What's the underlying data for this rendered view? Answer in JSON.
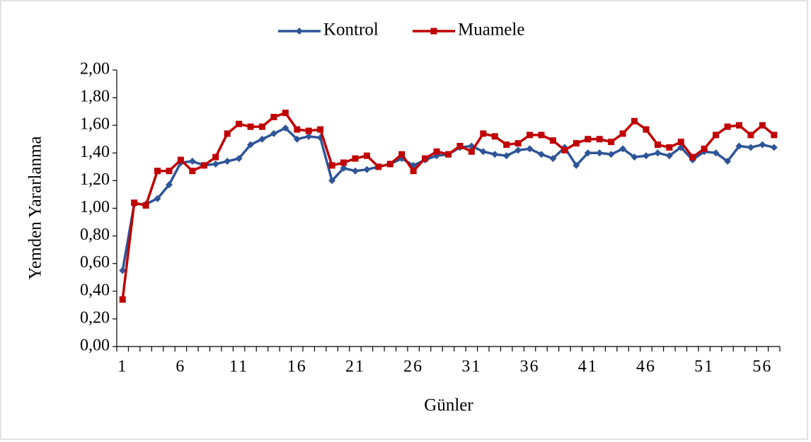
{
  "chart_data": {
    "type": "line",
    "xlabel": "Günler",
    "ylabel": "Yemden Yararlanma",
    "categories": [
      "1",
      null,
      null,
      null,
      null,
      "6",
      null,
      null,
      null,
      null,
      "11",
      null,
      null,
      null,
      null,
      "16",
      null,
      null,
      null,
      null,
      "21",
      null,
      null,
      null,
      null,
      "26",
      null,
      null,
      null,
      null,
      "31",
      null,
      null,
      null,
      null,
      "36",
      null,
      null,
      null,
      null,
      "41",
      null,
      null,
      null,
      null,
      "46",
      null,
      null,
      null,
      null,
      "51",
      null,
      null,
      null,
      null,
      "56",
      null
    ],
    "series": [
      {
        "name": "Kontrol",
        "color": "#2e5597",
        "marker": "diamond",
        "values": [
          0.55,
          1.03,
          1.03,
          1.07,
          1.17,
          1.33,
          1.34,
          1.31,
          1.32,
          1.34,
          1.36,
          1.46,
          1.5,
          1.54,
          1.58,
          1.5,
          1.52,
          1.51,
          1.2,
          1.29,
          1.27,
          1.28,
          1.3,
          1.32,
          1.36,
          1.31,
          1.35,
          1.38,
          1.39,
          1.44,
          1.45,
          1.41,
          1.39,
          1.38,
          1.42,
          1.43,
          1.39,
          1.36,
          1.44,
          1.31,
          1.4,
          1.4,
          1.39,
          1.43,
          1.37,
          1.38,
          1.4,
          1.38,
          1.44,
          1.35,
          1.41,
          1.4,
          1.34,
          1.45,
          1.44,
          1.46,
          1.44
        ]
      },
      {
        "name": "Muamele",
        "color": "#c00000",
        "marker": "square",
        "values": [
          0.34,
          1.04,
          1.02,
          1.27,
          1.27,
          1.35,
          1.27,
          1.31,
          1.37,
          1.54,
          1.61,
          1.59,
          1.59,
          1.66,
          1.69,
          1.57,
          1.56,
          1.57,
          1.31,
          1.33,
          1.36,
          1.38,
          1.3,
          1.32,
          1.39,
          1.27,
          1.36,
          1.41,
          1.39,
          1.45,
          1.41,
          1.54,
          1.52,
          1.46,
          1.47,
          1.53,
          1.53,
          1.49,
          1.42,
          1.47,
          1.5,
          1.5,
          1.48,
          1.54,
          1.63,
          1.57,
          1.46,
          1.44,
          1.48,
          1.37,
          1.43,
          1.53,
          1.59,
          1.6,
          1.53,
          1.6,
          1.53
        ]
      }
    ],
    "ylim": [
      0,
      2
    ],
    "yticks": [
      {
        "value": 0,
        "label": "0,00"
      },
      {
        "value": 0.2,
        "label": "0,20"
      },
      {
        "value": 0.4,
        "label": "0,40"
      },
      {
        "value": 0.6,
        "label": "0,60"
      },
      {
        "value": 0.8,
        "label": "0,80"
      },
      {
        "value": 1,
        "label": "1,00"
      },
      {
        "value": 1.2,
        "label": "1,20"
      },
      {
        "value": 1.4,
        "label": "1,40"
      },
      {
        "value": 1.6,
        "label": "1,60"
      },
      {
        "value": 1.8,
        "label": "1,80"
      },
      {
        "value": 2,
        "label": "2,00"
      }
    ],
    "grid": false,
    "legend": "top"
  }
}
